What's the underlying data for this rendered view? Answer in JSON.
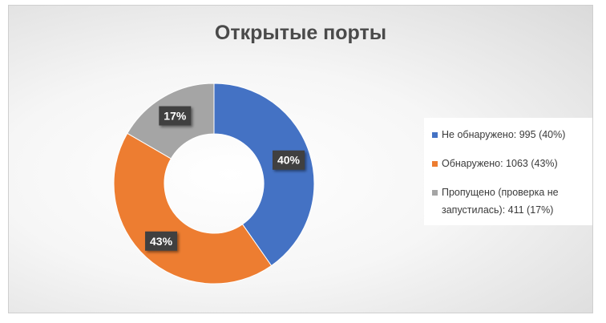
{
  "chart_data": {
    "type": "pie",
    "title": "Открытые порты",
    "slices": [
      {
        "label": "Не обнаружено: 995 (40%)",
        "value": 995,
        "percent_label": "40%",
        "color": "#4472c4"
      },
      {
        "label": "Обнаружено: 1063 (43%)",
        "value": 1063,
        "percent_label": "43%",
        "color": "#ed7d31"
      },
      {
        "label": "Пропущено (проверка не запустилась): 411 (17%)",
        "value": 411,
        "percent_label": "17%",
        "color": "#a5a5a5"
      }
    ],
    "donut": true,
    "legend_position": "right"
  }
}
